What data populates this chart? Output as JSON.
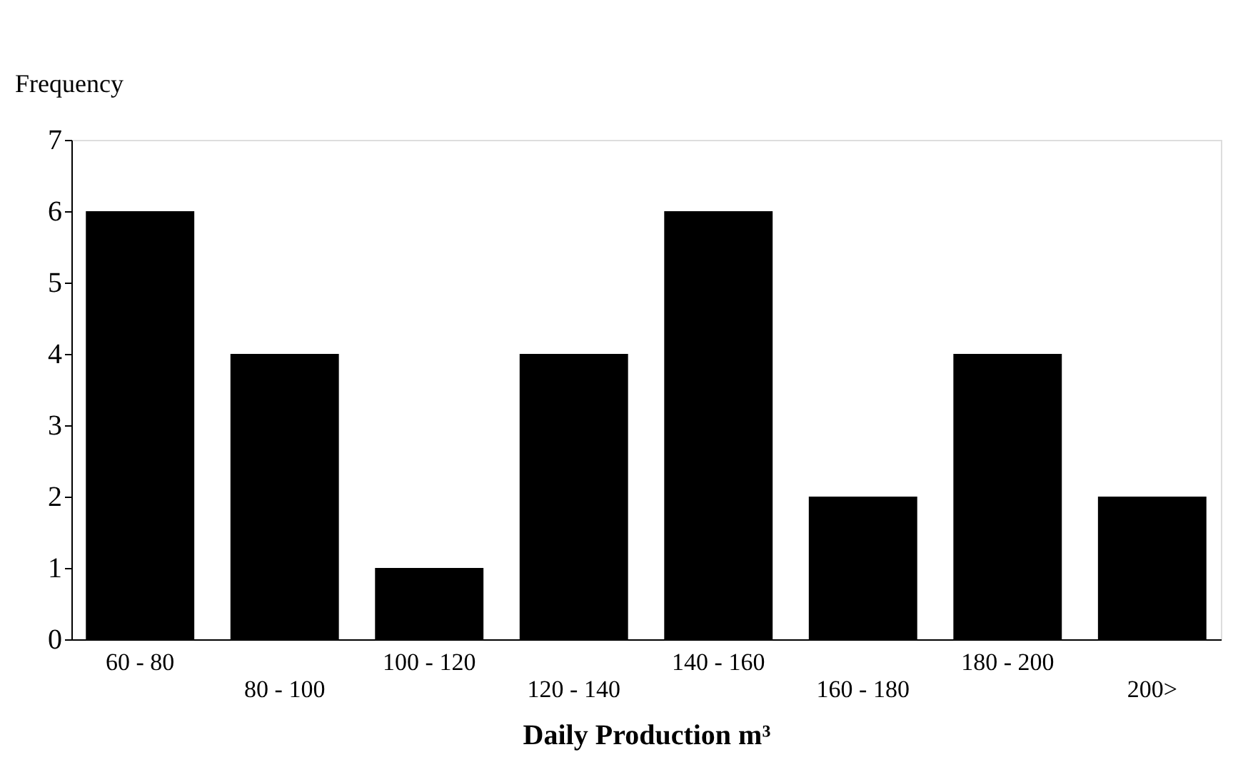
{
  "chart_data": {
    "type": "bar",
    "categories": [
      "60 - 80",
      "80 - 100",
      "100 - 120",
      "120 - 140",
      "140 - 160",
      "160 - 180",
      "180 - 200",
      "200>"
    ],
    "values": [
      6,
      4,
      1,
      4,
      6,
      2,
      4,
      2
    ],
    "color": "#000000",
    "ylabel": "Frequency",
    "xlabel": "Daily Production m³",
    "ylim": [
      0,
      7
    ],
    "yticks": [
      0,
      1,
      2,
      3,
      4,
      5,
      6,
      7
    ],
    "grid": false
  }
}
